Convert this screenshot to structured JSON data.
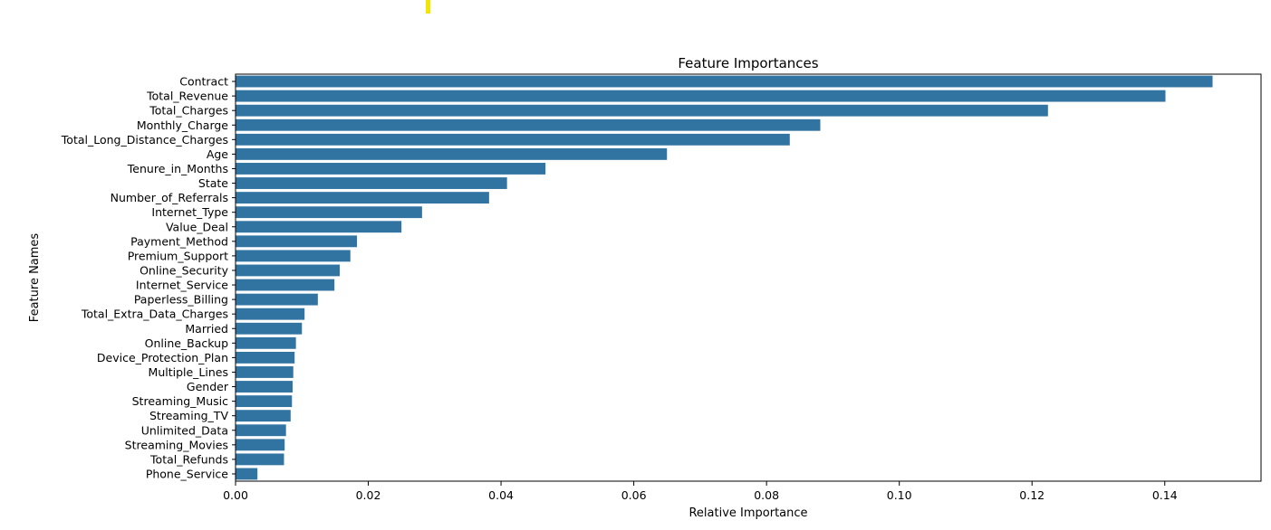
{
  "chart_data": {
    "type": "bar",
    "orientation": "horizontal",
    "title": "Feature Importances",
    "xlabel": "Relative Importance",
    "ylabel": "Feature Names",
    "xlim": [
      0,
      0.1545
    ],
    "xticks": [
      0.0,
      0.02,
      0.04,
      0.06,
      0.08,
      0.1,
      0.12,
      0.14
    ],
    "xtick_labels": [
      "0.00",
      "0.02",
      "0.04",
      "0.06",
      "0.08",
      "0.10",
      "0.12",
      "0.14"
    ],
    "grid": false,
    "bar_color": "#3274a1",
    "categories": [
      "Contract",
      "Total_Revenue",
      "Total_Charges",
      "Monthly_Charge",
      "Total_Long_Distance_Charges",
      "Age",
      "Tenure_in_Months",
      "State",
      "Number_of_Referrals",
      "Internet_Type",
      "Value_Deal",
      "Payment_Method",
      "Premium_Support",
      "Online_Security",
      "Internet_Service",
      "Paperless_Billing",
      "Total_Extra_Data_Charges",
      "Married",
      "Online_Backup",
      "Device_Protection_Plan",
      "Multiple_Lines",
      "Gender",
      "Streaming_Music",
      "Streaming_TV",
      "Unlimited_Data",
      "Streaming_Movies",
      "Total_Refunds",
      "Phone_Service"
    ],
    "values": [
      0.1472,
      0.1401,
      0.1224,
      0.0881,
      0.0835,
      0.065,
      0.0467,
      0.0409,
      0.0382,
      0.0281,
      0.025,
      0.0183,
      0.0173,
      0.0157,
      0.0149,
      0.0124,
      0.0104,
      0.01,
      0.0091,
      0.0089,
      0.0087,
      0.0086,
      0.0085,
      0.0083,
      0.0076,
      0.0074,
      0.0073,
      0.0033
    ]
  }
}
